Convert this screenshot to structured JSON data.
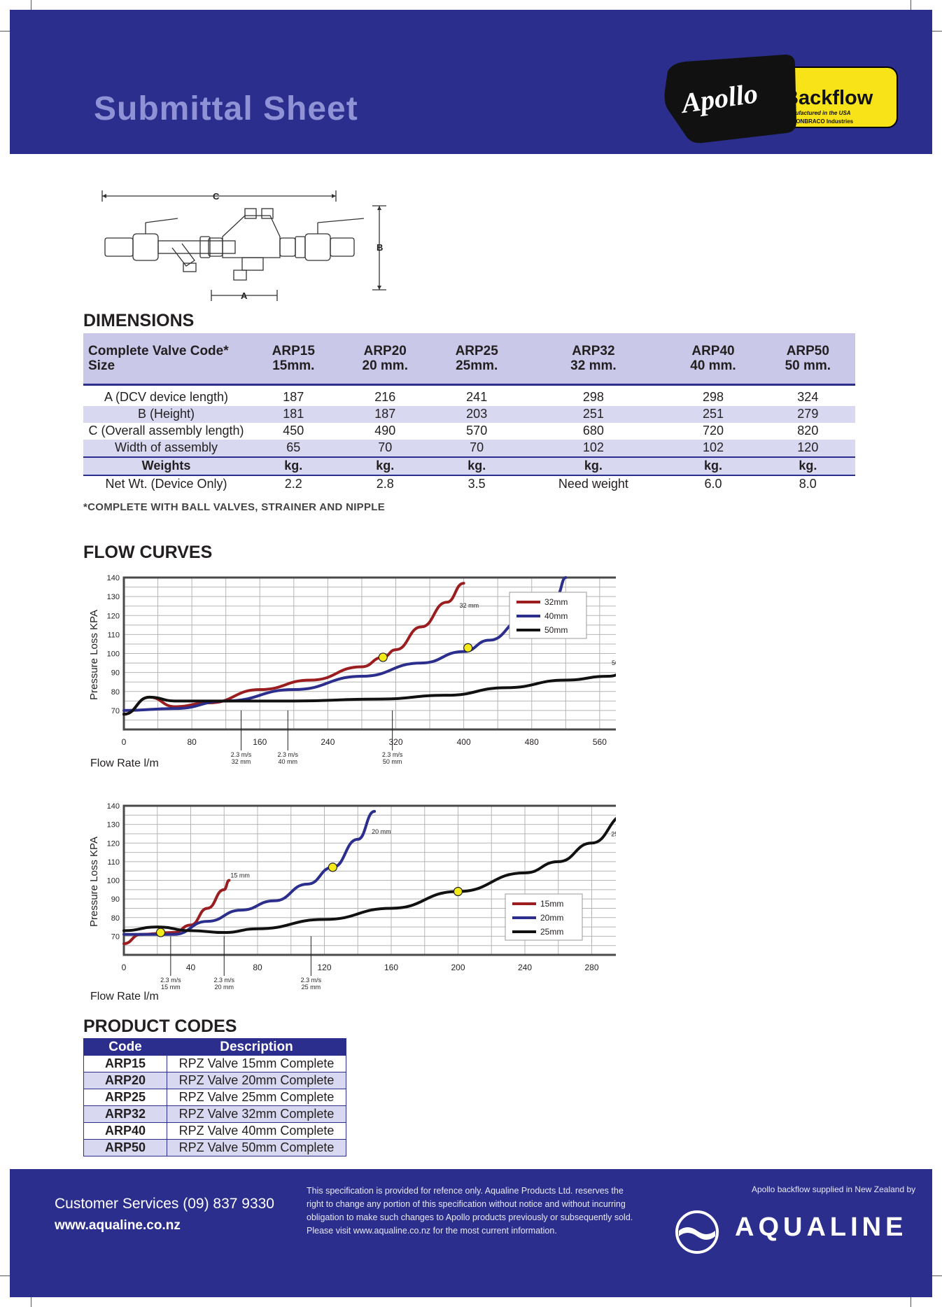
{
  "header": {
    "title": "Submittal Sheet",
    "logo_brand": "Apollo",
    "logo_product": "Backflow",
    "logo_line1": "manufactured in the USA",
    "logo_line2": "by CONBRACO Industries"
  },
  "diagram": {
    "label_c": "C",
    "label_b": "B",
    "label_a": "A"
  },
  "dimensions": {
    "title": "DIMENSIONS",
    "header_label_line1": "Complete Valve Code*",
    "header_label_line2": "Size",
    "columns": [
      {
        "code": "ARP15",
        "size": "15mm."
      },
      {
        "code": "ARP20",
        "size": "20 mm."
      },
      {
        "code": "ARP25",
        "size": "25mm."
      },
      {
        "code": "ARP32",
        "size": "32 mm."
      },
      {
        "code": "ARP40",
        "size": "40 mm."
      },
      {
        "code": "ARP50",
        "size": "50 mm."
      }
    ],
    "rows": [
      {
        "label": "A (DCV device length)",
        "values": [
          "187",
          "216",
          "241",
          "298",
          "298",
          "324"
        ]
      },
      {
        "label": "B (Height)",
        "values": [
          "181",
          "187",
          "203",
          "251",
          "251",
          "279"
        ]
      },
      {
        "label": "C (Overall assembly length)",
        "values": [
          "450",
          "490",
          "570",
          "680",
          "720",
          "820"
        ]
      },
      {
        "label": "Width of assembly",
        "values": [
          "65",
          "70",
          "70",
          "102",
          "102",
          "120"
        ]
      }
    ],
    "weights_row": {
      "label": "Weights",
      "values": [
        "kg.",
        "kg.",
        "kg.",
        "kg.",
        "kg.",
        "kg."
      ]
    },
    "net_row": {
      "label": "Net Wt. (Device Only)",
      "values": [
        "2.2",
        "2.8",
        "3.5",
        "Need weight",
        "6.0",
        "8.0"
      ]
    },
    "note": "*COMPLETE WITH BALL VALVES, STRAINER AND NIPPLE"
  },
  "flow_title": "FLOW CURVES",
  "chart_data": [
    {
      "type": "line",
      "title": "",
      "xlabel": "Flow Rate l/m",
      "ylabel": "Pressure Loss KPA",
      "xlim": [
        0,
        640
      ],
      "ylim": [
        60,
        140
      ],
      "xticks": [
        0,
        80,
        160,
        240,
        320,
        400,
        480,
        560,
        640
      ],
      "yticks": [
        70,
        80,
        90,
        100,
        110,
        120,
        130,
        140
      ],
      "grid": true,
      "legend": "top-right",
      "series": [
        {
          "name": "32mm",
          "color": "#9b1d20",
          "label": "32 mm",
          "points": [
            [
              0,
              68
            ],
            [
              30,
              77
            ],
            [
              60,
              72
            ],
            [
              100,
              74
            ],
            [
              160,
              81
            ],
            [
              220,
              86
            ],
            [
              280,
              93
            ],
            [
              305,
              98
            ],
            [
              320,
              102
            ],
            [
              350,
              114
            ],
            [
              380,
              127
            ],
            [
              400,
              137
            ]
          ]
        },
        {
          "name": "40mm",
          "color": "#2b2e8c",
          "label": "40 mm",
          "points": [
            [
              0,
              70
            ],
            [
              60,
              71
            ],
            [
              120,
              75
            ],
            [
              200,
              81
            ],
            [
              280,
              88
            ],
            [
              350,
              95
            ],
            [
              400,
              101
            ],
            [
              430,
              107
            ],
            [
              470,
              118
            ],
            [
              510,
              131
            ],
            [
              520,
              140
            ]
          ]
        },
        {
          "name": "50mm",
          "color": "#111111",
          "label": "50 mm",
          "points": [
            [
              0,
              68
            ],
            [
              30,
              77
            ],
            [
              60,
              75
            ],
            [
              100,
              75
            ],
            [
              200,
              75
            ],
            [
              300,
              76
            ],
            [
              380,
              78
            ],
            [
              450,
              82
            ],
            [
              520,
              86
            ],
            [
              570,
              88
            ],
            [
              600,
              92
            ],
            [
              640,
              99
            ]
          ]
        }
      ],
      "markers": [
        [
          305,
          98
        ],
        [
          405,
          103
        ],
        [
          640,
          99
        ]
      ],
      "annotations": [
        {
          "x": 138,
          "line1": "2.3 m/s",
          "line2": "32 mm"
        },
        {
          "x": 193,
          "line1": "2.3 m/s",
          "line2": "40 mm"
        },
        {
          "x": 316,
          "line1": "2.3 m/s",
          "line2": "50 mm"
        }
      ]
    },
    {
      "type": "line",
      "title": "",
      "xlabel": "Flow Rate l/m",
      "ylabel": "Pressure Loss KPA",
      "xlim": [
        0,
        320
      ],
      "ylim": [
        60,
        140
      ],
      "xticks": [
        0,
        40,
        80,
        120,
        160,
        200,
        240,
        280,
        320
      ],
      "yticks": [
        70,
        80,
        90,
        100,
        110,
        120,
        130,
        140
      ],
      "grid": true,
      "legend": "bottom-right",
      "series": [
        {
          "name": "15mm",
          "color": "#9b1d20",
          "label": "15 mm",
          "points": [
            [
              0,
              66
            ],
            [
              10,
              71
            ],
            [
              30,
              72
            ],
            [
              40,
              76
            ],
            [
              50,
              85
            ],
            [
              60,
              95
            ],
            [
              63,
              100
            ]
          ]
        },
        {
          "name": "20mm",
          "color": "#2b2e8c",
          "label": "20 mm",
          "points": [
            [
              0,
              71
            ],
            [
              30,
              71
            ],
            [
              50,
              78
            ],
            [
              70,
              84
            ],
            [
              90,
              89
            ],
            [
              110,
              98
            ],
            [
              125,
              107
            ],
            [
              140,
              122
            ],
            [
              150,
              137
            ]
          ]
        },
        {
          "name": "25mm",
          "color": "#111111",
          "label": "25 mm",
          "points": [
            [
              0,
              73
            ],
            [
              20,
              75
            ],
            [
              40,
              73
            ],
            [
              60,
              72
            ],
            [
              80,
              74
            ],
            [
              120,
              79
            ],
            [
              160,
              85
            ],
            [
              200,
              94
            ],
            [
              240,
              104
            ],
            [
              260,
              110
            ],
            [
              280,
              120
            ],
            [
              300,
              135
            ]
          ]
        }
      ],
      "markers": [
        [
          22,
          72
        ],
        [
          125,
          107
        ],
        [
          200,
          94
        ]
      ],
      "annotations": [
        {
          "x": 28,
          "line1": "2.3 m/s",
          "line2": "15 mm"
        },
        {
          "x": 60,
          "line1": "2.3 m/s",
          "line2": "20 mm"
        },
        {
          "x": 112,
          "line1": "2.3 m/s",
          "line2": "25 mm"
        }
      ]
    }
  ],
  "product_codes": {
    "title": "PRODUCT CODES",
    "col_code": "Code",
    "col_desc": "Description",
    "items": [
      {
        "code": "ARP15",
        "desc": "RPZ Valve 15mm Complete"
      },
      {
        "code": "ARP20",
        "desc": "RPZ Valve 20mm Complete"
      },
      {
        "code": "ARP25",
        "desc": "RPZ Valve 25mm Complete"
      },
      {
        "code": "ARP32",
        "desc": "RPZ Valve 32mm Complete"
      },
      {
        "code": "ARP40",
        "desc": "RPZ Valve 40mm Complete"
      },
      {
        "code": "ARP50",
        "desc": "RPZ Valve 50mm Complete"
      }
    ]
  },
  "footer": {
    "customer": "Customer Services (09) 837 9330",
    "website": "www.aqualine.co.nz",
    "disclaimer": "This specification is provided for refence only. Aqualine Products Ltd. reserves the right to change any portion of this specification without notice and without incurring obligation to make such changes to Apollo products previously or subsequently sold. Please visit www.aqualine.co.nz for the most current information.",
    "supplied_by": "Apollo backflow supplied in New Zealand by",
    "brand": "AQUALINE"
  }
}
